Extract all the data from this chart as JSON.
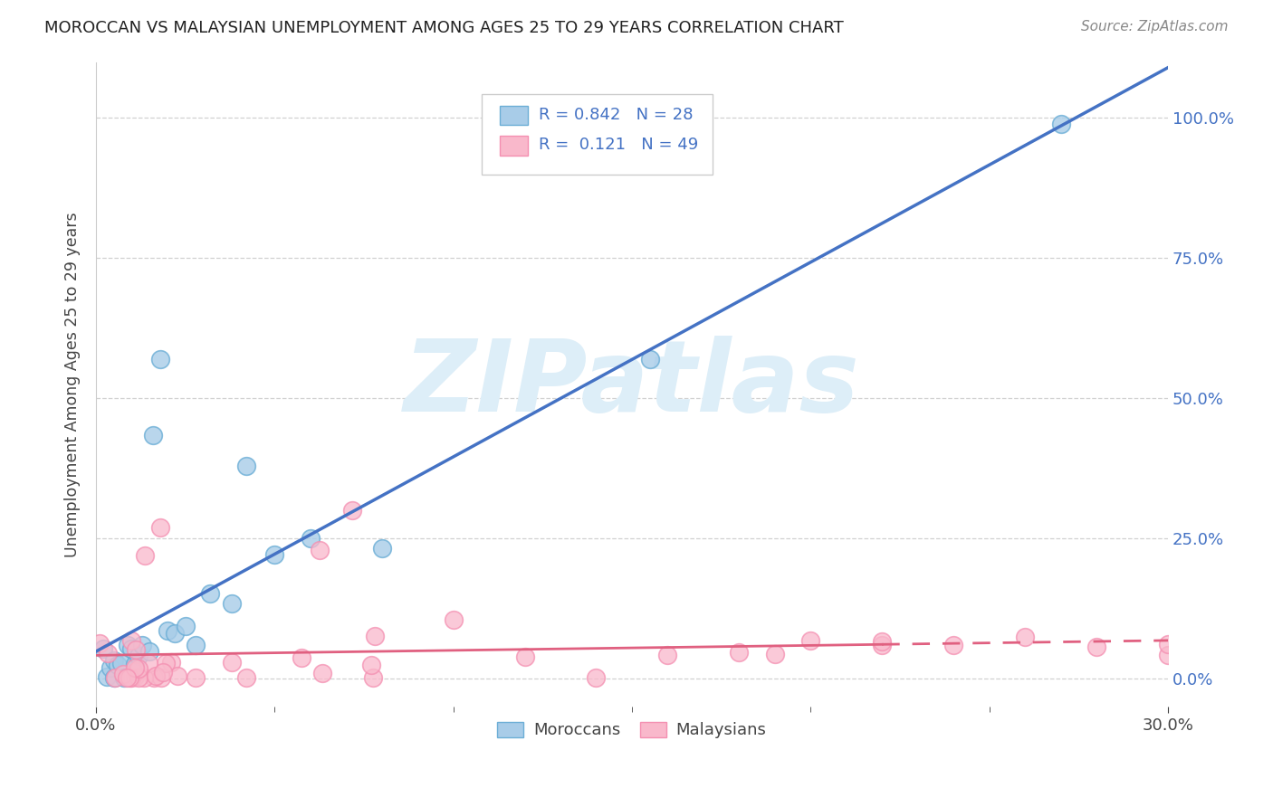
{
  "title": "MOROCCAN VS MALAYSIAN UNEMPLOYMENT AMONG AGES 25 TO 29 YEARS CORRELATION CHART",
  "source": "Source: ZipAtlas.com",
  "ylabel": "Unemployment Among Ages 25 to 29 years",
  "ytick_labels": [
    "0.0%",
    "25.0%",
    "50.0%",
    "75.0%",
    "100.0%"
  ],
  "ytick_values": [
    0.0,
    0.25,
    0.5,
    0.75,
    1.0
  ],
  "xlim": [
    0.0,
    0.3
  ],
  "ylim": [
    -0.05,
    1.1
  ],
  "moroccan_R": 0.842,
  "moroccan_N": 28,
  "malaysian_R": 0.121,
  "malaysian_N": 49,
  "moroccan_color": "#a8cce8",
  "moroccan_edge_color": "#6baed6",
  "moroccan_line_color": "#4472c4",
  "malaysian_color": "#f9b8cb",
  "malaysian_edge_color": "#f48fb1",
  "malaysian_line_color": "#e06080",
  "legend_label_moroccan": "Moroccans",
  "legend_label_malaysian": "Malaysians",
  "watermark": "ZIPatlas",
  "watermark_color": "#ddeef8",
  "background_color": "#ffffff",
  "grid_color": "#cccccc",
  "tick_color": "#444444",
  "title_color": "#222222",
  "right_tick_color": "#4472c4",
  "legend_text_color": "#4472c4"
}
